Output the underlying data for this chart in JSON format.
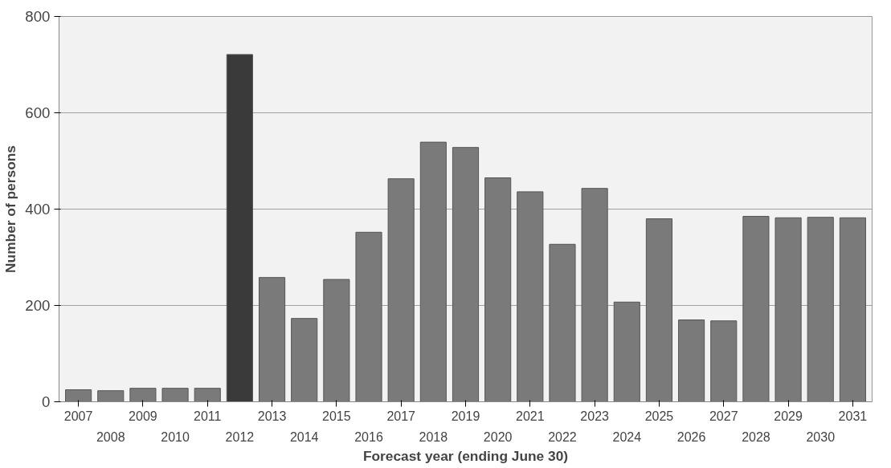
{
  "chart_data": {
    "type": "bar",
    "xlabel": "Forecast year (ending June 30)",
    "ylabel": "Number of persons",
    "categories": [
      "2007",
      "2008",
      "2009",
      "2010",
      "2011",
      "2012",
      "2013",
      "2014",
      "2015",
      "2016",
      "2017",
      "2018",
      "2019",
      "2020",
      "2021",
      "2022",
      "2023",
      "2024",
      "2025",
      "2026",
      "2027",
      "2028",
      "2029",
      "2030",
      "2031"
    ],
    "values": [
      25,
      23,
      28,
      28,
      28,
      721,
      258,
      173,
      254,
      352,
      463,
      539,
      528,
      465,
      436,
      327,
      443,
      207,
      380,
      170,
      168,
      385,
      382,
      383,
      382
    ],
    "colors": [
      "#7a7a7a",
      "#7a7a7a",
      "#7a7a7a",
      "#7a7a7a",
      "#7a7a7a",
      "#3a3a3a",
      "#7a7a7a",
      "#7a7a7a",
      "#7a7a7a",
      "#7a7a7a",
      "#7a7a7a",
      "#7a7a7a",
      "#7a7a7a",
      "#7a7a7a",
      "#7a7a7a",
      "#7a7a7a",
      "#7a7a7a",
      "#7a7a7a",
      "#7a7a7a",
      "#7a7a7a",
      "#7a7a7a",
      "#7a7a7a",
      "#7a7a7a",
      "#7a7a7a",
      "#7a7a7a"
    ],
    "ylim": [
      0,
      800
    ],
    "yticks": [
      0,
      200,
      400,
      600,
      800
    ],
    "grid": "y"
  }
}
